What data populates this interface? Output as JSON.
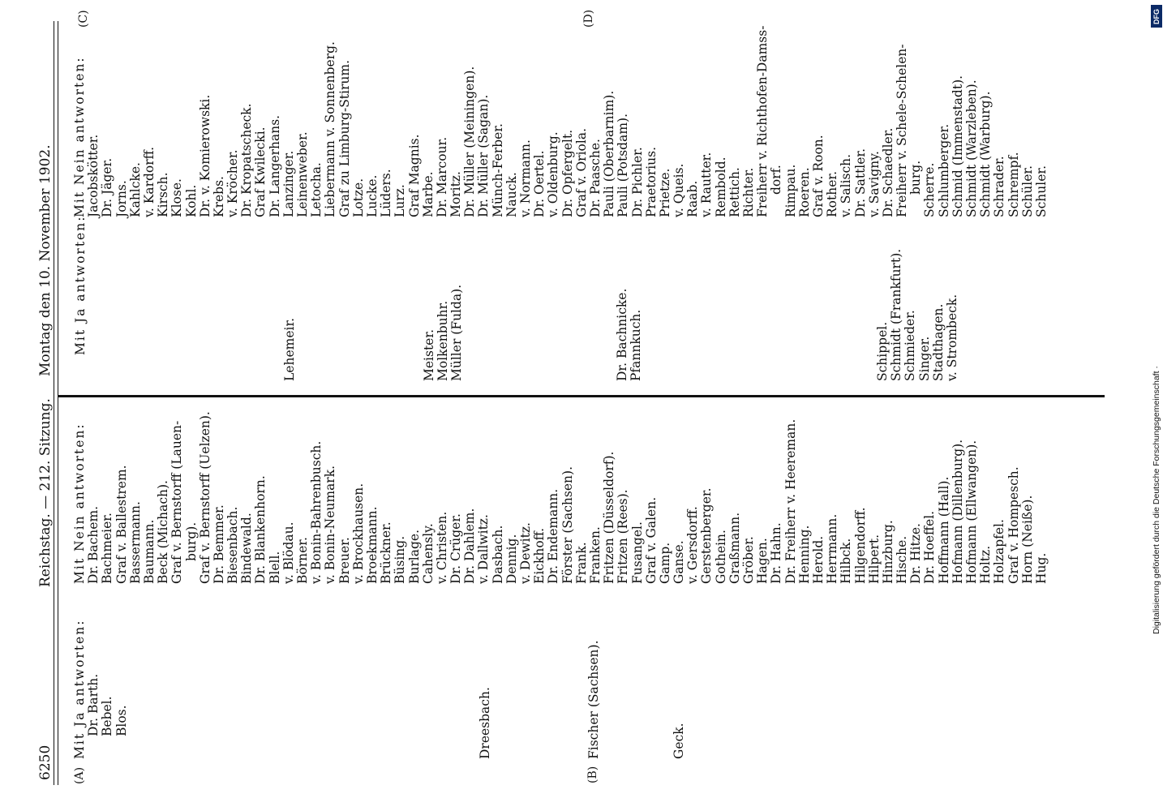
{
  "header": {
    "page_number": "6250",
    "title": "Reichstag. — 212. Sitzung.",
    "date": "Montag den 10. November 1902."
  },
  "side_letters": {
    "a": "(A)",
    "b": "(B)",
    "c": "(C)",
    "d": "(D)"
  },
  "columns": {
    "col1": {
      "heading": "Mit Ja antworten:",
      "names": [
        "Dr. Barth.",
        "Bebel.",
        "Blos."
      ],
      "dreesbach": "Dreesbach.",
      "fischer": "Fischer (Sachsen).",
      "geck": "Geck."
    },
    "col2": {
      "heading": "Mit Nein antworten:",
      "names": [
        "Dr. Bachem.",
        "Bachmeier.",
        "Graf v. Ballestrem.",
        "Bassermann.",
        "Baumann.",
        "Beck (Michach).",
        "Graf v. Bernstorff (Lauen-",
        "burg).",
        "Graf v. Bernstorff (Uelzen).",
        "Dr. Bemmer.",
        "Biesenbach.",
        "Bindewald.",
        "Dr. Blankenhorn.",
        "Blell.",
        "v. Blödau.",
        "Börner.",
        "v. Bonin-Bahrenbusch.",
        "v. Bonin-Neumark.",
        "Breuer.",
        "v. Brockhausen.",
        "Broekmann.",
        "Brückner.",
        "Büsing.",
        "Burlage.",
        "Cahensly.",
        "v. Christen.",
        "Dr. Crüger.",
        "Dr. Dahlem.",
        "v. Dallwitz.",
        "Dasbach.",
        "Dennig.",
        "v. Dewitz.",
        "Eickhoff.",
        "Dr. Endemann.",
        "Förster (Sachsen).",
        "Frank.",
        "Franken.",
        "Fritzen (Düsseldorf).",
        "Fritzen (Rees).",
        "Fusangel.",
        "Graf v. Galen.",
        "Gamp.",
        "Ganse.",
        "v. Gersdorff.",
        "Gerstenberger.",
        "Gothein.",
        "Graßmann.",
        "Gröber.",
        "Hagen.",
        "Dr. Hahn.",
        "Dr. Freiherr v. Heereman.",
        "Henning.",
        "Herold.",
        "Herrmann.",
        "Hilbck.",
        "Hilgendorff.",
        "Hilpert.",
        "Hinzburg.",
        "Hische.",
        "Dr. Hitze.",
        "Dr. Hoeffel.",
        "Hoffmann (Hall).",
        "Hofmann (Dillenburg).",
        "Hofmann (Ellwangen).",
        "Holtz.",
        "Holzapfel.",
        "Graf v. Hompesch.",
        "Horn (Neiße).",
        "Hug."
      ]
    },
    "col3": {
      "heading": "Mit Ja antworten:",
      "lehemeir": "Lehemeir.",
      "meister": [
        "Meister.",
        "Molkenbuhr.",
        "Müller (Fulda)."
      ],
      "bachnicke": [
        "Dr. Bachnicke.",
        "Pfannkuch."
      ],
      "schippel": [
        "Schippel.",
        "Schmidt (Frankfurt).",
        "Schmieder.",
        "Singer.",
        "Stadthagen.",
        "v. Strombeck."
      ]
    },
    "col4": {
      "heading": "Mit Nein antworten:",
      "names": [
        "Jacobskötter.",
        "Dr. Jäger.",
        "Jorns.",
        "Kahlcke.",
        "v. Kardorff.",
        "Kirsch.",
        "Klose.",
        "Kohl.",
        "Dr. v. Komierowski.",
        "Krebs.",
        "v. Kröcher.",
        "Dr. Kropatscheck.",
        "Graf Kwilecki.",
        "Dr. Langerhans.",
        "Lanzinger.",
        "Leinenweber.",
        "Letocha.",
        "Liebermann v. Sonnenberg.",
        "Graf zu Limburg-Stirum.",
        "Lotze.",
        "Lucke.",
        "Lüders.",
        "Lurz.",
        "Graf Magnis.",
        "Marbe.",
        "Dr. Marcour.",
        "Moritz.",
        "Dr. Müller (Meiningen).",
        "Dr. Müller (Sagan).",
        "Münch-Ferber.",
        "Nauck.",
        "v. Normann.",
        "Dr. Oertel.",
        "v. Oldenburg.",
        "Dr. Opfergelt.",
        "Graf v. Oriola.",
        "Dr. Paasche.",
        "Pauli (Oberbarnim).",
        "Pauli (Potsdam).",
        "Dr. Pichler.",
        "Praetorius.",
        "Prietze.",
        "v. Queis.",
        "Raab.",
        "v. Rautter.",
        "Rembold.",
        "Rettich.",
        "Richter.",
        "Freiherr v. Richthofen-Damss-",
        "dorf.",
        "Rimpau.",
        "Roeren.",
        "Graf v. Roon.",
        "Rother.",
        "v. Salisch.",
        "Dr. Sattler.",
        "v. Savigny.",
        "Dr. Schaedler.",
        "Freiherr v. Schele-Schelen-",
        "burg.",
        "Scherre.",
        "Schlumberger.",
        "Schmid (Immenstadt).",
        "Schmidt (Warzleben).",
        "Schmidt (Warburg).",
        "Schrader.",
        "Schrempf.",
        "Schüler.",
        "Schuler."
      ]
    }
  },
  "footer": {
    "digitization_note": "Digitalisierung gefördert durch die Deutsche Forschungsgemeinschaft ·",
    "logo_text": "DFG"
  }
}
